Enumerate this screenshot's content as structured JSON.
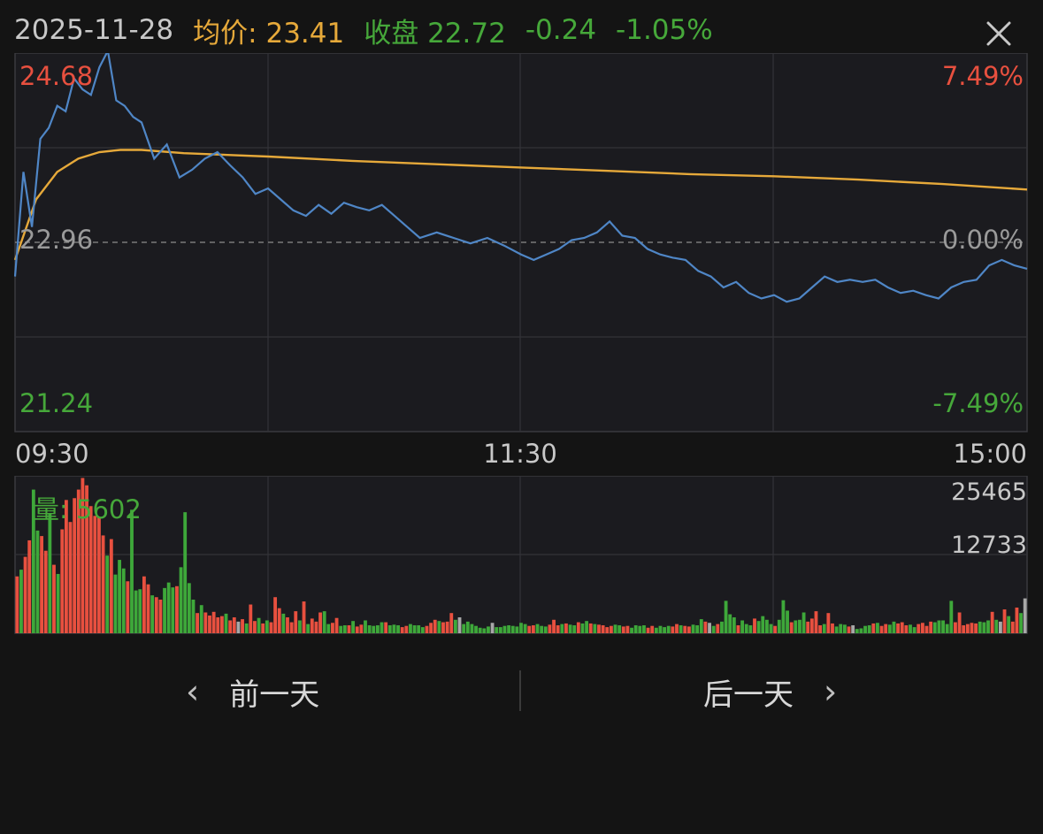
{
  "header": {
    "date": "2025-11-28",
    "avg_text": "均价: 23.41",
    "close_text": "收盘 22.72",
    "change": "-0.24",
    "change_pct": "-1.05%"
  },
  "icons": {
    "close": "close-icon",
    "prev": "chevron-left-icon",
    "next": "chevron-right-icon"
  },
  "colors": {
    "price_line": "#4f86c6",
    "avg_line": "#e6a93a",
    "up": "#e8503f",
    "down": "#3ea83a",
    "neutral": "#a8a8a8"
  },
  "chart_data": [
    {
      "type": "line",
      "name": "intraday-price",
      "y_axis_left": {
        "top": "24.68",
        "mid": "22.96",
        "bottom": "21.24"
      },
      "y_axis_right": {
        "top": "7.49%",
        "mid": "0.00%",
        "bottom": "-7.49%"
      },
      "time_labels": [
        "09:30",
        "11:30",
        "15:00"
      ],
      "ylim": [
        21.24,
        24.68
      ],
      "prev_close": 22.96,
      "x_range": [
        0,
        240
      ],
      "series": [
        {
          "role": "price",
          "x": [
            0,
            2,
            4,
            6,
            8,
            10,
            12,
            14,
            16,
            18,
            20,
            22,
            24,
            26,
            28,
            30,
            33,
            36,
            39,
            42,
            45,
            48,
            51,
            54,
            57,
            60,
            63,
            66,
            69,
            72,
            75,
            78,
            81,
            84,
            87,
            90,
            93,
            96,
            100,
            104,
            108,
            112,
            116,
            120,
            123,
            126,
            129,
            132,
            135,
            138,
            141,
            144,
            147,
            150,
            153,
            156,
            159,
            162,
            165,
            168,
            171,
            174,
            177,
            180,
            183,
            186,
            189,
            192,
            195,
            198,
            201,
            204,
            207,
            210,
            213,
            216,
            219,
            222,
            225,
            228,
            231,
            234,
            237,
            240
          ],
          "values": [
            22.65,
            23.6,
            23.1,
            23.9,
            24.0,
            24.2,
            24.15,
            24.45,
            24.35,
            24.3,
            24.55,
            24.7,
            24.25,
            24.2,
            24.1,
            24.05,
            23.72,
            23.85,
            23.55,
            23.62,
            23.72,
            23.78,
            23.66,
            23.55,
            23.4,
            23.45,
            23.35,
            23.25,
            23.2,
            23.3,
            23.22,
            23.32,
            23.28,
            23.25,
            23.3,
            23.2,
            23.1,
            23.0,
            23.05,
            23.0,
            22.95,
            23.0,
            22.93,
            22.85,
            22.8,
            22.85,
            22.9,
            22.98,
            23.0,
            23.05,
            23.15,
            23.02,
            23.0,
            22.9,
            22.85,
            22.82,
            22.8,
            22.7,
            22.65,
            22.55,
            22.6,
            22.5,
            22.45,
            22.48,
            22.42,
            22.45,
            22.55,
            22.65,
            22.6,
            22.62,
            22.6,
            22.62,
            22.55,
            22.5,
            22.52,
            22.48,
            22.45,
            22.55,
            22.6,
            22.62,
            22.75,
            22.8,
            22.75,
            22.72
          ]
        },
        {
          "role": "average",
          "x": [
            0,
            5,
            10,
            15,
            20,
            25,
            30,
            40,
            60,
            80,
            100,
            120,
            140,
            160,
            180,
            200,
            220,
            240
          ],
          "values": [
            22.8,
            23.35,
            23.6,
            23.72,
            23.78,
            23.8,
            23.8,
            23.77,
            23.74,
            23.7,
            23.67,
            23.64,
            23.61,
            23.58,
            23.56,
            23.53,
            23.49,
            23.44
          ]
        }
      ]
    },
    {
      "type": "bar",
      "name": "volume",
      "title": "量: 5602",
      "y_axis_labels": [
        "25465",
        "12733"
      ],
      "ylim": [
        0,
        25465
      ],
      "x_range": [
        0,
        240
      ],
      "values": [
        9300,
        10400,
        12500,
        15200,
        23500,
        16800,
        15900,
        13500,
        19600,
        11200,
        9700,
        17000,
        21800,
        18200,
        22100,
        23500,
        25400,
        24200,
        20800,
        19200,
        19000,
        16000,
        12700,
        15400,
        9600,
        12000,
        10600,
        8500,
        20200,
        7000,
        7200,
        9300,
        8000,
        6200,
        5900,
        5500,
        7400,
        8300,
        7500,
        7700,
        10800,
        19800,
        8200,
        5500,
        3300,
        4600,
        3400,
        2900,
        3500,
        2600,
        2800,
        3200,
        2100,
        2600,
        1900,
        2300,
        1600,
        4700,
        2000,
        2500,
        1600,
        2100,
        1800,
        5900,
        4100,
        3200,
        2600,
        1800,
        3600,
        2100,
        5200,
        1500,
        2400,
        1900,
        3400,
        3600,
        1500,
        1700,
        2500,
        1200,
        1300,
        1300,
        2000,
        1100,
        1400,
        2100,
        1300,
        1200,
        1300,
        1800,
        1800,
        1300,
        1400,
        1300,
        1000,
        1200,
        1500,
        1300,
        1300,
        1000,
        1200,
        1700,
        2200,
        2000,
        1800,
        1900,
        3300,
        2200,
        2600,
        1500,
        1900,
        1500,
        1200,
        900,
        800,
        1100,
        1700,
        1000,
        1000,
        1200,
        1300,
        1200,
        1100,
        1700,
        1500,
        1200,
        1300,
        1500,
        1200,
        1100,
        1400,
        2200,
        1300,
        1500,
        1600,
        1400,
        1300,
        1800,
        1600,
        2000,
        1600,
        1500,
        1400,
        1300,
        1000,
        1200,
        1400,
        1300,
        1100,
        1200,
        900,
        1300,
        1200,
        1300,
        900,
        1200,
        900,
        1200,
        1000,
        1200,
        1100,
        1500,
        1300,
        1200,
        1100,
        1400,
        1300,
        2300,
        1900,
        1700,
        1200,
        1500,
        1900,
        5300,
        3100,
        2600,
        1300,
        2100,
        1500,
        1300,
        2400,
        2000,
        2800,
        2200,
        1500,
        1200,
        2200,
        5400,
        3700,
        1800,
        2100,
        2200,
        3400,
        1900,
        2400,
        3600,
        1300,
        1500,
        3300,
        1600,
        1100,
        1500,
        1400,
        1100,
        1300,
        700,
        800,
        1200,
        1300,
        1600,
        1700,
        1200,
        1500,
        1400,
        1900,
        1600,
        1800,
        1300,
        1400,
        1000,
        1500,
        1700,
        1200,
        1900,
        1800,
        2100,
        2100,
        1500,
        5300,
        1800,
        3400,
        1300,
        1500,
        1700,
        1600,
        1900,
        1800,
        2100,
        3500,
        2200,
        1900,
        3900,
        2800,
        1900,
        4200,
        3300,
        5700
      ],
      "colors": [
        "up",
        "down",
        "up",
        "up",
        "down",
        "down",
        "up",
        "up",
        "down",
        "up",
        "down",
        "up",
        "up",
        "up",
        "up",
        "up",
        "up",
        "up",
        "up",
        "up",
        "up",
        "up",
        "down",
        "up",
        "down",
        "down",
        "down",
        "up",
        "down",
        "down",
        "down",
        "up",
        "up",
        "down",
        "up",
        "up",
        "down",
        "down",
        "down",
        "up",
        "down",
        "down",
        "down",
        "down",
        "up",
        "down",
        "up",
        "up",
        "up",
        "up",
        "up",
        "down",
        "up",
        "up",
        "neutral",
        "up",
        "down",
        "up",
        "up",
        "down",
        "up",
        "down",
        "up",
        "up",
        "up",
        "down",
        "up",
        "up",
        "up",
        "down",
        "up",
        "down",
        "up",
        "up",
        "up",
        "down",
        "down",
        "up",
        "up",
        "down",
        "down",
        "up",
        "down",
        "up",
        "up",
        "down",
        "down",
        "down",
        "down",
        "down",
        "up",
        "down",
        "down",
        "down",
        "up",
        "up",
        "down",
        "down",
        "down",
        "down",
        "up",
        "up",
        "up",
        "down",
        "up",
        "up",
        "up",
        "down",
        "neutral",
        "down",
        "down",
        "down",
        "down",
        "down",
        "down",
        "down",
        "neutral",
        "down",
        "down",
        "down",
        "down",
        "down",
        "down",
        "down",
        "down",
        "up",
        "up",
        "down",
        "down",
        "down",
        "up",
        "up",
        "up",
        "down",
        "up",
        "down",
        "down",
        "up",
        "down",
        "down",
        "up",
        "down",
        "up",
        "up",
        "up",
        "up",
        "down",
        "down",
        "up",
        "up",
        "down",
        "down",
        "down",
        "down",
        "up",
        "up",
        "down",
        "down",
        "down",
        "down",
        "up",
        "up",
        "down",
        "up",
        "up",
        "down",
        "down",
        "down",
        "up",
        "neutral",
        "down",
        "up",
        "down",
        "down",
        "down",
        "down",
        "up",
        "down",
        "down",
        "down",
        "up",
        "down",
        "down",
        "down",
        "down",
        "up",
        "down",
        "down",
        "down",
        "up",
        "down",
        "down",
        "down",
        "up",
        "up",
        "up",
        "up",
        "down",
        "up",
        "up",
        "down",
        "down",
        "down",
        "up",
        "neutral",
        "down",
        "down",
        "down",
        "down",
        "up",
        "down",
        "up",
        "up",
        "down",
        "down",
        "up",
        "up",
        "up",
        "down",
        "down",
        "up",
        "up",
        "up",
        "up",
        "down",
        "down",
        "down",
        "down",
        "down",
        "up",
        "up",
        "up",
        "up",
        "up",
        "up",
        "down",
        "down",
        "down",
        "up",
        "down",
        "neutral",
        "up",
        "down",
        "up",
        "up",
        "down"
      ]
    }
  ],
  "nav": {
    "prev_label": "前一天",
    "next_label": "后一天"
  }
}
